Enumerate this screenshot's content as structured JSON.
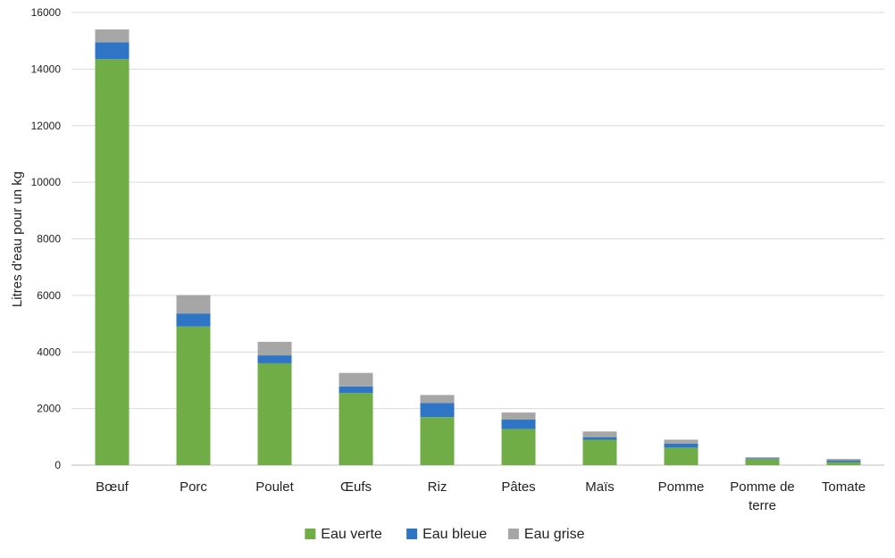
{
  "chart_data": {
    "type": "bar",
    "stacked": true,
    "categories": [
      [
        "Bœuf"
      ],
      [
        "Porc"
      ],
      [
        "Poulet"
      ],
      [
        "Œufs"
      ],
      [
        "Riz"
      ],
      [
        "Pâtes"
      ],
      [
        "Maïs"
      ],
      [
        "Pomme"
      ],
      [
        "Pomme de",
        "terre"
      ],
      [
        "Tomate"
      ]
    ],
    "series": [
      {
        "name": "Eau verte",
        "color": "#70ad47",
        "values": [
          14350,
          4900,
          3600,
          2550,
          1700,
          1280,
          900,
          620,
          210,
          110
        ]
      },
      {
        "name": "Eau bleue",
        "color": "#2e75c6",
        "values": [
          600,
          460,
          280,
          230,
          500,
          330,
          90,
          140,
          30,
          60
        ]
      },
      {
        "name": "Eau grise",
        "color": "#a6a6a6",
        "values": [
          450,
          650,
          480,
          480,
          280,
          250,
          200,
          140,
          40,
          50
        ]
      }
    ],
    "title": "",
    "xlabel": "",
    "ylabel": "Litres d'eau pour un kg",
    "ylim": [
      0,
      16000
    ],
    "yticks": [
      "0",
      "2000",
      "4000",
      "6000",
      "8000",
      "10000",
      "12000",
      "14000",
      "16000"
    ],
    "grid": true,
    "legend_position": "bottom"
  }
}
